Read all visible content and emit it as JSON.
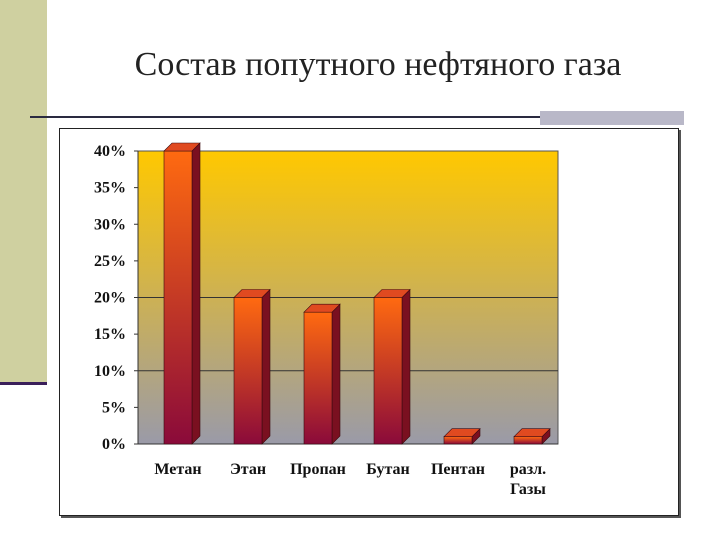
{
  "slide": {
    "title": "Состав попутного нефтяного газа"
  },
  "chart_data": {
    "type": "bar",
    "categories": [
      "Метан",
      "Этан",
      "Пропан",
      "Бутан",
      "Пентан",
      "разл. Газы"
    ],
    "values": [
      40,
      20,
      18,
      20,
      1,
      1
    ],
    "ylim": [
      0,
      40
    ],
    "yticks": [
      "0%",
      "5%",
      "10%",
      "15%",
      "20%",
      "25%",
      "30%",
      "35%",
      "40%"
    ],
    "grid": true,
    "legend": "none",
    "colors": {
      "plot_top": "#ffc800",
      "plot_bottom": "#9a9aa8",
      "bar_top": "#ff6a10",
      "bar_bottom": "#8a0a3a",
      "bar_side": "#7a1020",
      "bar_cap": "#e04a20"
    }
  }
}
